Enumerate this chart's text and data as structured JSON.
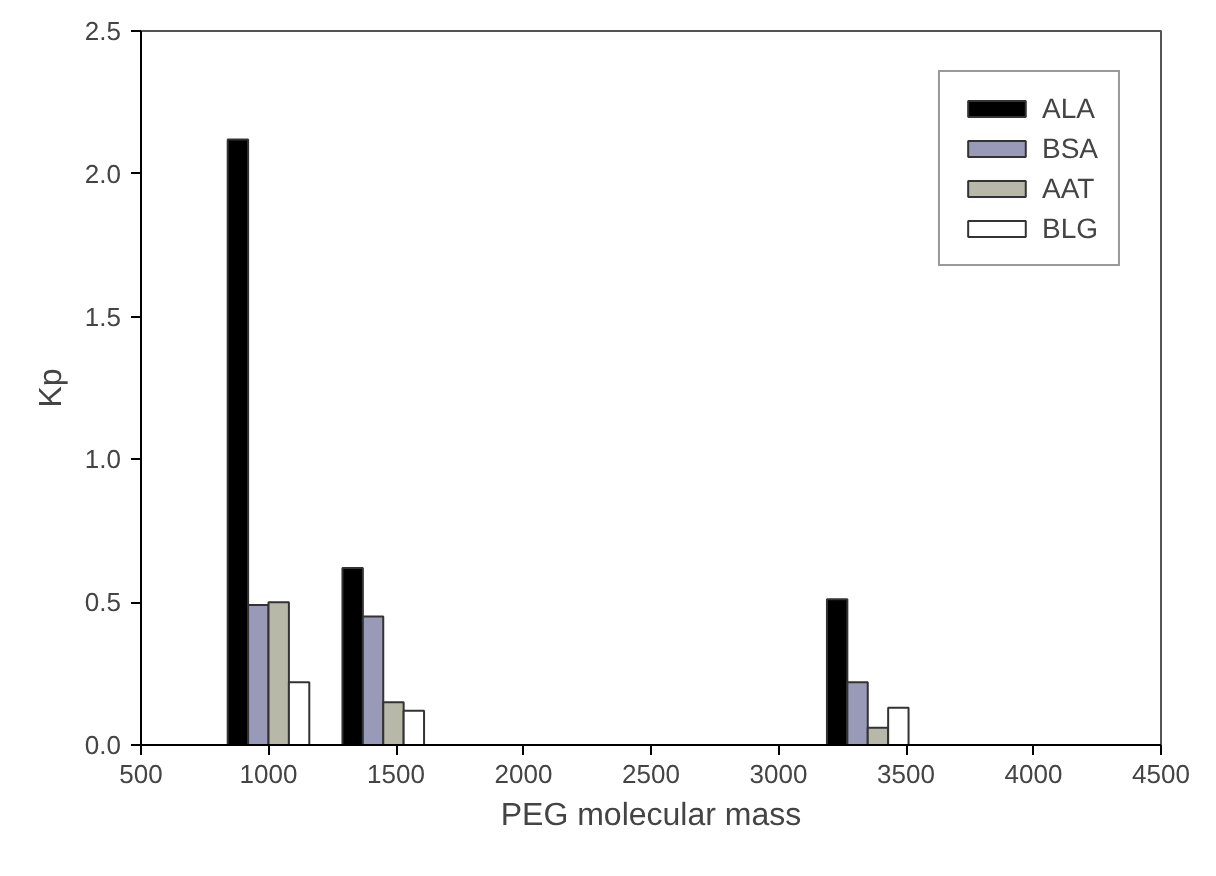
{
  "chart_data": {
    "type": "bar",
    "xlabel": "PEG molecular mass",
    "ylabel": "Kp",
    "xlim": [
      500,
      4500
    ],
    "xticks": [
      500,
      1000,
      1500,
      2000,
      2500,
      3000,
      3500,
      4000,
      4500
    ],
    "ylim": [
      0,
      2.5
    ],
    "yticks": [
      {
        "value": 0,
        "label": "0.0"
      },
      {
        "value": 0.5,
        "label": "0.5"
      },
      {
        "value": 1,
        "label": "1.0"
      },
      {
        "value": 1.5,
        "label": "1.5"
      },
      {
        "value": 2,
        "label": "2.0"
      },
      {
        "value": 2.5,
        "label": "2.5"
      }
    ],
    "series": [
      {
        "name": "ALA",
        "color": "#000000",
        "x": [
          880,
          1330,
          3230
        ],
        "values": [
          2.12,
          0.62,
          0.51
        ]
      },
      {
        "name": "BSA",
        "color": "#9999b8",
        "x": [
          960,
          1410,
          3310
        ],
        "values": [
          0.49,
          0.45,
          0.22
        ]
      },
      {
        "name": "AAT",
        "color": "#b8b8a8",
        "x": [
          1040,
          1490,
          3390
        ],
        "values": [
          0.5,
          0.15,
          0.06
        ]
      },
      {
        "name": "BLG",
        "color": "#ffffff",
        "x": [
          1120,
          1570,
          3470
        ],
        "values": [
          0.22,
          0.12,
          0.13
        ]
      }
    ],
    "grid": false,
    "legend": "top right"
  }
}
